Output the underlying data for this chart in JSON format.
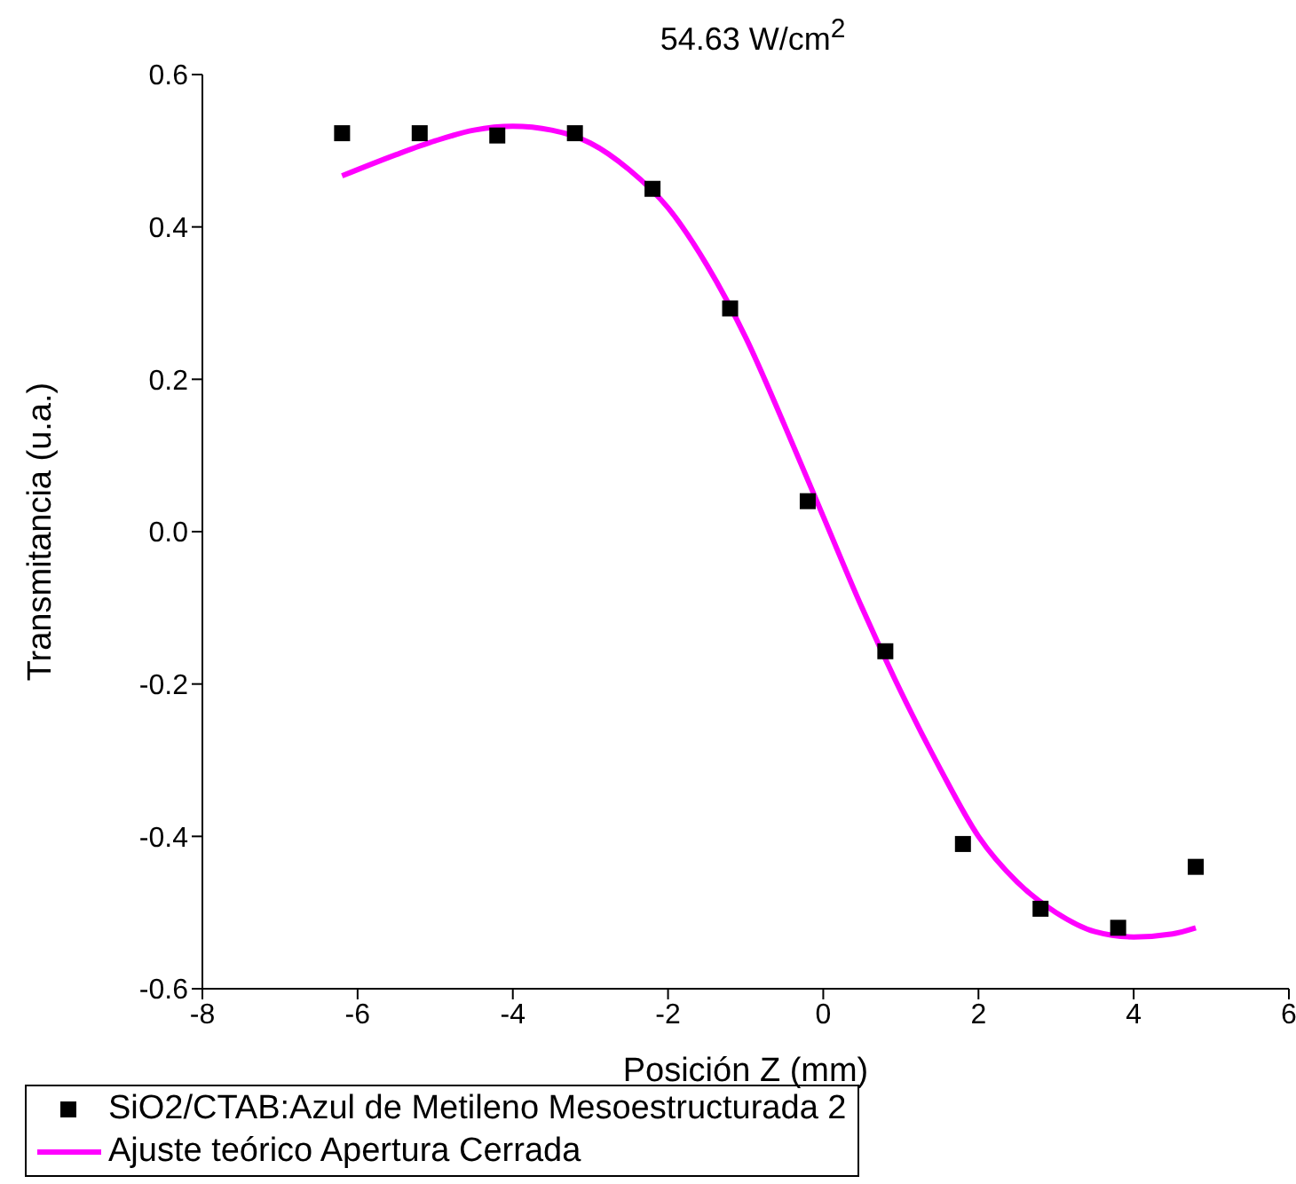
{
  "chart_data": {
    "type": "scatter",
    "title": "54.63 W/cm$^{2}$",
    "xlabel": "Posición Z (mm)",
    "ylabel": "Transmitancia (u.a.)",
    "xlim": [
      -8,
      6
    ],
    "xticks": [
      -8,
      -6,
      -4,
      -2,
      0,
      2,
      4,
      6
    ],
    "ylim": [
      -0.6,
      0.6
    ],
    "yticks": [
      -0.6,
      -0.4,
      -0.2,
      {
        "value": 0,
        "label": "0.0"
      },
      0.2,
      0.4,
      0.6
    ],
    "grid": false,
    "legend": "bottom",
    "marker": "square",
    "series": [
      {
        "name": "SiO2/CTAB:Azul de Metileno Mesoestructurada 2",
        "color": "#000000",
        "x": [
          -6.2,
          -5.2,
          -4.2,
          -3.2,
          -2.2,
          -1.2,
          -0.2,
          0.8,
          1.8,
          2.8,
          3.8,
          4.8
        ],
        "values": [
          0.523,
          0.523,
          0.52,
          0.523,
          0.45,
          0.293,
          0.04,
          -0.157,
          -0.41,
          -0.495,
          -0.52,
          -0.44
        ]
      },
      {
        "name": "Ajuste teórico Apertura Cerrada",
        "type": "line",
        "color": "#ff00ff",
        "marker": "none",
        "line_style": "solid",
        "x": [
          -6.2,
          -5.5,
          -5,
          -4.5,
          -4,
          -3.5,
          -3,
          -2.5,
          -2,
          -1.5,
          -1,
          -0.5,
          0,
          0.5,
          1,
          1.5,
          2,
          2.5,
          3,
          3.5,
          4,
          4.5,
          4.8
        ],
        "values": [
          0.467,
          0.495,
          0.513,
          0.527,
          0.532,
          0.527,
          0.51,
          0.475,
          0.425,
          0.35,
          0.255,
          0.14,
          0.02,
          -0.1,
          -0.21,
          -0.31,
          -0.4,
          -0.46,
          -0.5,
          -0.525,
          -0.532,
          -0.528,
          -0.52
        ]
      }
    ]
  }
}
